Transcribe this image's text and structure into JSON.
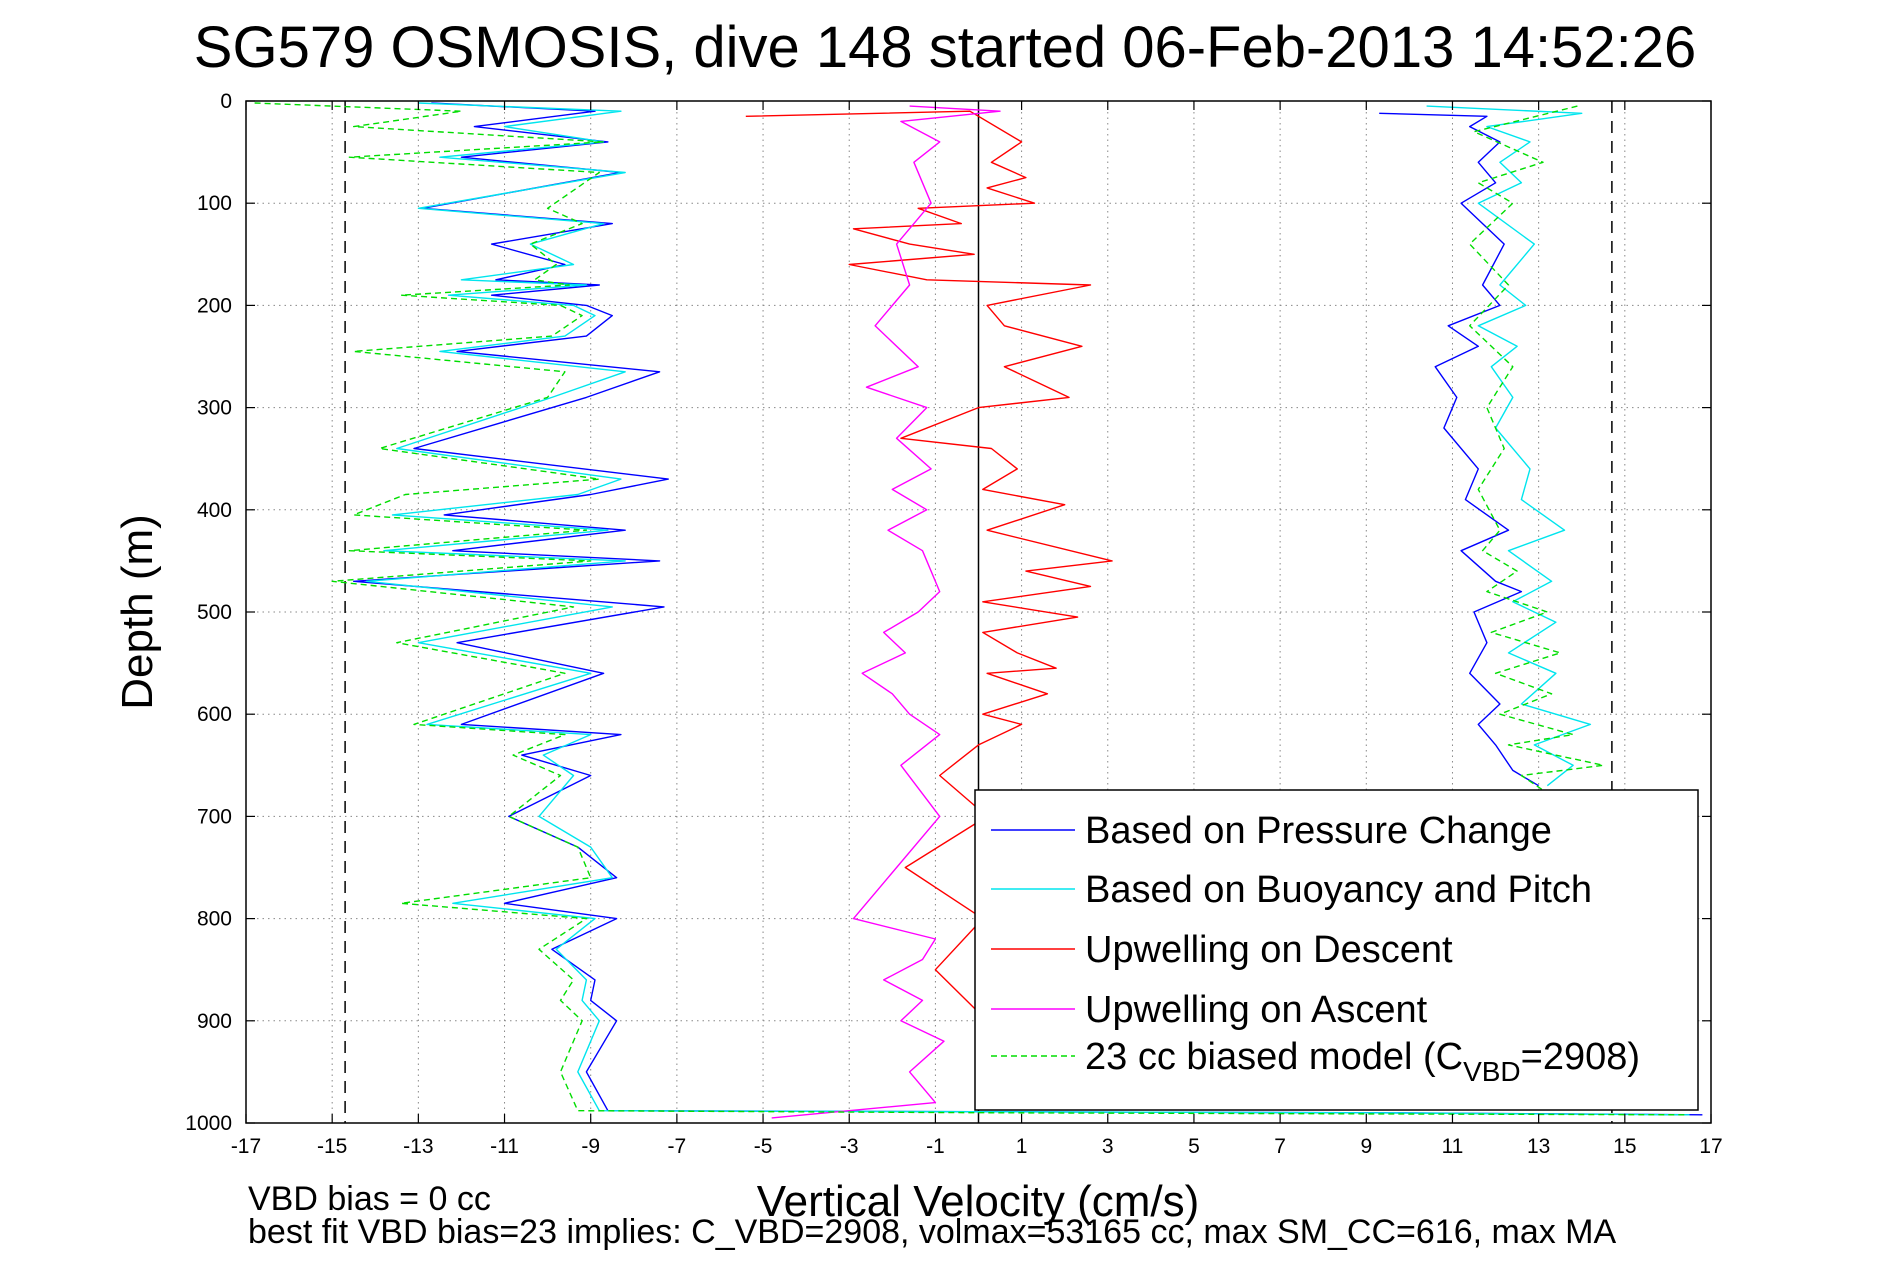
{
  "chart_data": {
    "type": "line",
    "title": "SG579 OSMOSIS, dive 148 started 06-Feb-2013 14:52:26",
    "xlabel": "Vertical Velocity (cm/s)",
    "ylabel": "Depth (m)",
    "xlim": [
      -17,
      17
    ],
    "ylim": [
      0,
      1000
    ],
    "y_reversed": true,
    "grid": true,
    "x_ticks": [
      -17,
      -15,
      -13,
      -11,
      -9,
      -7,
      -5,
      -3,
      -1,
      1,
      3,
      5,
      7,
      9,
      11,
      13,
      15,
      17
    ],
    "y_ticks": [
      0,
      100,
      200,
      300,
      400,
      500,
      600,
      700,
      800,
      900,
      1000
    ],
    "reference_lines": [
      {
        "x": -14.7,
        "style": "dashed",
        "color": "#000000"
      },
      {
        "x": 14.7,
        "style": "dashed",
        "color": "#000000"
      },
      {
        "x": 0,
        "style": "solid",
        "color": "#000000"
      }
    ],
    "legend_position": "bottom-right",
    "series": [
      {
        "name": "Based on Pressure Change",
        "color": "#0000ff",
        "style": "solid",
        "segments": [
          {
            "x": [
              -12.7,
              -8.9,
              -11.7,
              -8.6,
              -12.0,
              -8.3,
              -12.9,
              -8.5,
              -11.3,
              -9.6,
              -11.2,
              -8.8,
              -11.3,
              -9.1,
              -8.5,
              -9.1,
              -12.1,
              -7.4,
              -9.1,
              -13.1,
              -7.2,
              -9.0,
              -12.4,
              -8.2,
              -12.2,
              -7.4,
              -14.5,
              -7.3,
              -12.1,
              -8.7,
              -12.0,
              -8.3,
              -10.6,
              -9.0,
              -10.9,
              -9.3,
              -8.4,
              -11.0,
              -8.4,
              -9.9,
              -8.9,
              -9.0,
              -8.4,
              -9.1,
              -8.6,
              9.4,
              16.8
            ],
            "y": [
              2,
              10,
              25,
              40,
              55,
              70,
              105,
              120,
              140,
              160,
              175,
              180,
              190,
              200,
              210,
              230,
              245,
              265,
              290,
              340,
              370,
              385,
              405,
              420,
              440,
              450,
              470,
              495,
              530,
              560,
              610,
              620,
              640,
              660,
              700,
              730,
              760,
              785,
              800,
              830,
              860,
              880,
              900,
              950,
              988,
              990,
              992
            ]
          },
          {
            "x": [
              9.3,
              11.8,
              11.4,
              12.1,
              11.6,
              12.0,
              11.2,
              12.2,
              11.7,
              12.1,
              10.9,
              11.6,
              10.6,
              11.1,
              10.8,
              11.6,
              11.3,
              12.3,
              11.2,
              12.0,
              12.6,
              11.5,
              11.8,
              11.4,
              12.1,
              11.6,
              12.0,
              12.4,
              13.0
            ],
            "y": [
              12,
              15,
              25,
              40,
              60,
              80,
              100,
              140,
              180,
              200,
              220,
              240,
              260,
              290,
              320,
              360,
              390,
              420,
              440,
              470,
              480,
              500,
              530,
              560,
              590,
              610,
              630,
              655,
              670
            ]
          }
        ]
      },
      {
        "name": "Based on Buoyancy and Pitch",
        "color": "#00e5ee",
        "style": "solid",
        "segments": [
          {
            "x": [
              -13.0,
              -8.3,
              -11.0,
              -8.7,
              -12.5,
              -8.2,
              -13.0,
              -8.7,
              -10.4,
              -9.4,
              -12.0,
              -9.1,
              -12.3,
              -9.4,
              -8.9,
              -9.6,
              -12.5,
              -8.2,
              -9.9,
              -13.5,
              -8.3,
              -9.3,
              -13.6,
              -8.6,
              -13.8,
              -8.2,
              -14.2,
              -8.5,
              -13.0,
              -9.0,
              -12.8,
              -9.0,
              -10.1,
              -9.4,
              -10.2,
              -9.0,
              -8.5,
              -12.2,
              -8.9,
              -9.8,
              -9.1,
              -9.2,
              -8.8,
              -9.3,
              -8.8,
              9.0,
              16.5
            ],
            "y": [
              2,
              10,
              25,
              40,
              55,
              70,
              105,
              120,
              140,
              160,
              175,
              180,
              190,
              200,
              210,
              230,
              245,
              265,
              290,
              340,
              370,
              385,
              405,
              420,
              440,
              450,
              470,
              495,
              530,
              560,
              610,
              620,
              640,
              660,
              700,
              730,
              760,
              785,
              800,
              830,
              860,
              880,
              900,
              950,
              988,
              990,
              992
            ]
          },
          {
            "x": [
              10.4,
              14.0,
              11.8,
              12.8,
              12.1,
              12.6,
              11.6,
              12.9,
              12.1,
              12.7,
              11.6,
              12.5,
              11.9,
              12.4,
              12.0,
              12.8,
              12.6,
              13.6,
              12.3,
              13.3,
              12.4,
              13.4,
              12.3,
              13.4,
              12.6,
              14.2,
              12.9,
              13.8,
              13.2
            ],
            "y": [
              5,
              12,
              25,
              40,
              60,
              80,
              100,
              140,
              180,
              200,
              220,
              240,
              260,
              290,
              320,
              360,
              390,
              420,
              440,
              470,
              490,
              510,
              540,
              560,
              590,
              610,
              630,
              650,
              670
            ]
          }
        ]
      },
      {
        "name": "Upwelling on Descent",
        "color": "#ff0000",
        "style": "solid",
        "segments": [
          {
            "x": [
              -5.4,
              -0.2,
              1.0,
              0.3,
              1.1,
              0.2,
              1.3,
              -1.4,
              -0.4,
              -2.9,
              -1.6,
              -0.1,
              -3.0,
              -1.2,
              2.6,
              0.2,
              0.6,
              2.4,
              0.6,
              2.1,
              0.0,
              -1.8,
              0.3,
              0.9,
              0.1,
              2.0,
              0.2,
              3.1,
              1.1,
              2.6,
              0.1,
              2.3,
              0.1,
              0.9,
              1.8,
              0.2,
              1.6,
              0.1,
              1.0,
              0.0,
              -0.9,
              0.2,
              -1.7,
              0.1,
              -1.0,
              0.2
            ],
            "y": [
              15,
              10,
              40,
              60,
              75,
              85,
              100,
              105,
              120,
              125,
              140,
              150,
              160,
              175,
              180,
              200,
              220,
              240,
              260,
              290,
              300,
              330,
              340,
              360,
              380,
              395,
              420,
              450,
              460,
              475,
              490,
              505,
              520,
              540,
              555,
              560,
              580,
              600,
              610,
              630,
              660,
              700,
              750,
              800,
              850,
              900
            ]
          }
        ]
      },
      {
        "name": "Upwelling on Ascent",
        "color": "#ff00ff",
        "style": "solid",
        "segments": [
          {
            "x": [
              -1.6,
              0.5,
              -1.8,
              -0.9,
              -1.5,
              -1.1,
              -1.9,
              -1.6,
              -2.4,
              -1.4,
              -2.6,
              -1.2,
              -1.9,
              -1.1,
              -2.0,
              -1.2,
              -2.1,
              -1.3,
              -0.9,
              -1.4,
              -2.2,
              -1.7,
              -2.7,
              -2.0,
              -1.6,
              -0.9,
              -1.8,
              -0.9,
              -2.9,
              -1.0,
              -1.3,
              -2.2,
              -1.3,
              -1.8,
              -0.8,
              -1.6,
              -1.0,
              -4.8
            ],
            "y": [
              5,
              10,
              20,
              40,
              60,
              100,
              140,
              180,
              220,
              260,
              280,
              300,
              330,
              360,
              380,
              400,
              420,
              440,
              480,
              500,
              520,
              540,
              560,
              580,
              600,
              620,
              650,
              700,
              800,
              820,
              840,
              860,
              880,
              900,
              920,
              950,
              980,
              995
            ]
          }
        ]
      },
      {
        "name": "23 cc biased model (C_VBD=2908)",
        "color": "#00dd00",
        "style": "dashed",
        "segments": [
          {
            "x": [
              -16.8,
              -12.0,
              -14.5,
              -8.7,
              -14.6,
              -8.8,
              -10.0,
              -9.2,
              -10.4,
              -9.8,
              -10.3,
              -9.5,
              -13.4,
              -9.7,
              -9.2,
              -9.9,
              -14.5,
              -9.6,
              -10.0,
              -13.9,
              -8.8,
              -13.3,
              -14.5,
              -9.1,
              -14.6,
              -9.0,
              -15.0,
              -9.4,
              -13.5,
              -9.6,
              -13.1,
              -9.6,
              -10.8,
              -9.7,
              -10.9,
              -9.3,
              -9.0,
              -13.4,
              -9.1,
              -10.2,
              -9.4,
              -9.7,
              -9.2,
              -9.7,
              -9.3,
              0.5,
              16.4
            ],
            "y": [
              2,
              10,
              25,
              40,
              55,
              70,
              105,
              120,
              140,
              160,
              175,
              180,
              190,
              200,
              210,
              230,
              245,
              265,
              290,
              340,
              370,
              385,
              405,
              420,
              440,
              450,
              470,
              495,
              530,
              560,
              610,
              620,
              640,
              660,
              700,
              730,
              760,
              785,
              800,
              830,
              860,
              880,
              900,
              950,
              988,
              990,
              992
            ]
          },
          {
            "x": [
              13.9,
              11.5,
              13.1,
              11.6,
              12.4,
              11.4,
              12.3,
              11.4,
              12.4,
              11.8,
              12.2,
              11.6,
              12.1,
              11.7,
              12.5,
              11.8,
              13.2,
              11.9,
              13.5,
              12.0,
              13.3,
              12.1,
              13.8,
              12.3,
              14.5,
              12.6,
              13.3
            ],
            "y": [
              5,
              30,
              60,
              80,
              100,
              140,
              180,
              220,
              260,
              300,
              340,
              380,
              420,
              440,
              460,
              480,
              500,
              520,
              540,
              560,
              580,
              600,
              620,
              630,
              650,
              660,
              680
            ]
          }
        ]
      }
    ],
    "legend": [
      {
        "label": "Based on Pressure Change",
        "color": "#0000ff",
        "style": "solid"
      },
      {
        "label": "Based on Buoyancy and Pitch",
        "color": "#00e5ee",
        "style": "solid"
      },
      {
        "label": "Upwelling on Descent",
        "color": "#ff0000",
        "style": "solid"
      },
      {
        "label": "Upwelling on Ascent",
        "color": "#ff00ff",
        "style": "solid"
      },
      {
        "label_prefix": "23 cc biased model (C",
        "label_sub": "VBD",
        "label_suffix": "=2908)",
        "color": "#00dd00",
        "style": "dashed"
      }
    ],
    "footer_lines": [
      "VBD bias = 0 cc",
      "best fit VBD bias=23 implies: C_VBD=2908, volmax=53165 cc, max SM_CC=616, max MA"
    ]
  }
}
